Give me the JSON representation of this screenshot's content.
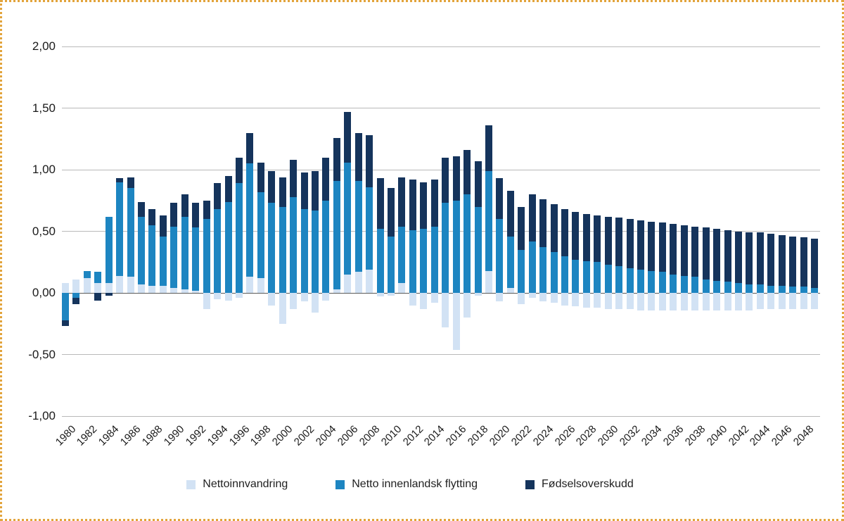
{
  "chart_data": {
    "type": "bar",
    "stacked": true,
    "title": "",
    "xlabel": "",
    "ylabel": "",
    "x": [
      1980,
      1981,
      1982,
      1983,
      1984,
      1985,
      1986,
      1987,
      1988,
      1989,
      1990,
      1991,
      1992,
      1993,
      1994,
      1995,
      1996,
      1997,
      1998,
      1999,
      2000,
      2001,
      2002,
      2003,
      2004,
      2005,
      2006,
      2007,
      2008,
      2009,
      2010,
      2011,
      2012,
      2013,
      2014,
      2015,
      2016,
      2017,
      2018,
      2019,
      2020,
      2021,
      2022,
      2023,
      2024,
      2025,
      2026,
      2027,
      2028,
      2029,
      2030,
      2031,
      2032,
      2033,
      2034,
      2035,
      2036,
      2037,
      2038,
      2039,
      2040,
      2041,
      2042,
      2043,
      2044,
      2045,
      2046,
      2047,
      2048,
      2049
    ],
    "series": [
      {
        "name": "Nettoinnvandring",
        "color": "#d2e2f4",
        "values": [
          0.08,
          0.11,
          0.12,
          0.08,
          0.08,
          0.14,
          0.13,
          0.07,
          0.06,
          0.06,
          0.04,
          0.03,
          0.02,
          -0.13,
          -0.05,
          -0.06,
          -0.04,
          0.13,
          0.12,
          -0.1,
          -0.25,
          -0.13,
          -0.07,
          -0.16,
          -0.06,
          0.03,
          0.15,
          0.17,
          0.19,
          -0.03,
          -0.02,
          0.08,
          -0.1,
          -0.13,
          -0.08,
          -0.28,
          -0.46,
          -0.2,
          -0.02,
          0.18,
          -0.07,
          0.04,
          -0.09,
          -0.04,
          -0.07,
          -0.08,
          -0.1,
          -0.11,
          -0.12,
          -0.12,
          -0.13,
          -0.13,
          -0.13,
          -0.14,
          -0.14,
          -0.14,
          -0.14,
          -0.14,
          -0.14,
          -0.14,
          -0.14,
          -0.14,
          -0.14,
          -0.14,
          -0.13,
          -0.13,
          -0.13,
          -0.13,
          -0.13,
          -0.13
        ]
      },
      {
        "name": "Netto innenlandsk flytting",
        "color": "#1d85c1",
        "values": [
          -0.22,
          -0.04,
          0.06,
          0.09,
          0.54,
          0.76,
          0.72,
          0.55,
          0.49,
          0.4,
          0.5,
          0.59,
          0.51,
          0.6,
          0.68,
          0.74,
          0.89,
          0.92,
          0.7,
          0.73,
          0.7,
          0.78,
          0.68,
          0.67,
          0.75,
          0.88,
          0.91,
          0.74,
          0.67,
          0.52,
          0.46,
          0.46,
          0.51,
          0.52,
          0.54,
          0.73,
          0.75,
          0.8,
          0.7,
          0.81,
          0.6,
          0.42,
          0.35,
          0.42,
          0.37,
          0.33,
          0.3,
          0.27,
          0.26,
          0.25,
          0.23,
          0.22,
          0.2,
          0.19,
          0.18,
          0.17,
          0.15,
          0.14,
          0.13,
          0.11,
          0.1,
          0.09,
          0.08,
          0.07,
          0.07,
          0.06,
          0.06,
          0.05,
          0.05,
          0.04
        ]
      },
      {
        "name": "Fødselsoverskudd",
        "color": "#15345c",
        "values": [
          -0.05,
          -0.05,
          0.0,
          -0.06,
          -0.02,
          0.03,
          0.09,
          0.12,
          0.13,
          0.17,
          0.19,
          0.18,
          0.2,
          0.15,
          0.21,
          0.21,
          0.21,
          0.25,
          0.24,
          0.26,
          0.24,
          0.3,
          0.3,
          0.32,
          0.35,
          0.35,
          0.41,
          0.39,
          0.42,
          0.41,
          0.39,
          0.4,
          0.41,
          0.38,
          0.38,
          0.37,
          0.36,
          0.36,
          0.37,
          0.37,
          0.33,
          0.37,
          0.35,
          0.38,
          0.39,
          0.39,
          0.38,
          0.39,
          0.38,
          0.38,
          0.39,
          0.39,
          0.4,
          0.4,
          0.4,
          0.4,
          0.41,
          0.41,
          0.41,
          0.42,
          0.42,
          0.42,
          0.42,
          0.42,
          0.42,
          0.42,
          0.41,
          0.41,
          0.4,
          0.4
        ]
      }
    ],
    "ylim": [
      -1.0,
      2.0
    ],
    "yticks": [
      {
        "y": 2.0,
        "label": "2,00"
      },
      {
        "y": 1.5,
        "label": "1,50"
      },
      {
        "y": 1.0,
        "label": "1,00"
      },
      {
        "y": 0.5,
        "label": "0,50"
      },
      {
        "y": 0.0,
        "label": "0,00"
      },
      {
        "y": -0.5,
        "label": "-0,50"
      },
      {
        "y": -1.0,
        "label": "-1,00"
      }
    ],
    "xtick_labels": [
      "1980",
      "1982",
      "1984",
      "1986",
      "1988",
      "1990",
      "1992",
      "1994",
      "1996",
      "1998",
      "2000",
      "2002",
      "2004",
      "2006",
      "2008",
      "2010",
      "2012",
      "2014",
      "2016",
      "2018",
      "2020",
      "2022",
      "2024",
      "2026",
      "2028",
      "2030",
      "2032",
      "2034",
      "2036",
      "2038",
      "2040",
      "2042",
      "2044",
      "2046",
      "2048"
    ],
    "grid": true,
    "legend_position": "bottom"
  },
  "style": {
    "border_color": "#e2a43c",
    "grid_color": "#b9b9b9",
    "zero_line_color": "#5a5a5a",
    "text_color": "#1a1a1a",
    "background": "#ffffff"
  }
}
